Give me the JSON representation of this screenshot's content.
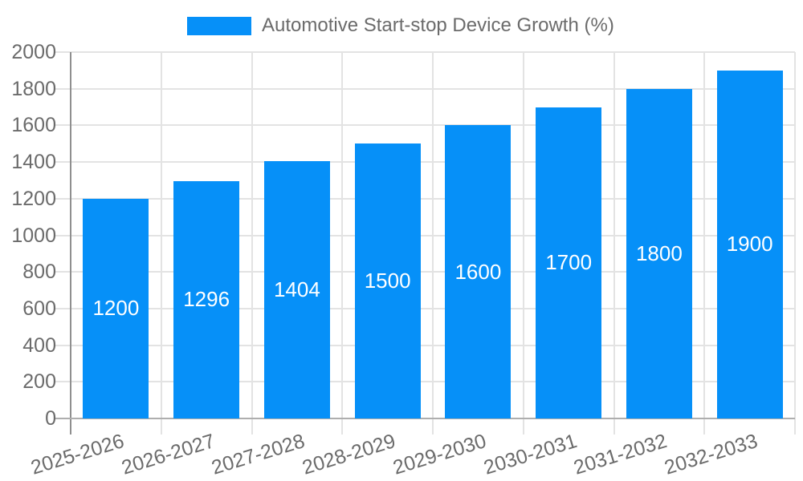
{
  "chart_data": {
    "type": "bar",
    "legend_label": "Automotive Start-stop Device Growth (%)",
    "categories": [
      "2025-2026",
      "2026-2027",
      "2027-2028",
      "2028-2029",
      "2029-2030",
      "2030-2031",
      "2031-2032",
      "2032-2033"
    ],
    "values": [
      1200,
      1296,
      1404,
      1500,
      1600,
      1700,
      1800,
      1900
    ],
    "bar_labels": [
      "1200",
      "1296",
      "1404",
      "1500",
      "1600",
      "1700",
      "1800",
      "1900"
    ],
    "ylim": [
      0,
      2000
    ],
    "ytick_step": 200,
    "ytick_labels": [
      "0",
      "200",
      "400",
      "600",
      "800",
      "1000",
      "1200",
      "1400",
      "1600",
      "1800",
      "2000"
    ],
    "grid": true,
    "legend_position": "top",
    "bar_label_position": "inside-center",
    "colors": {
      "bar": "#0690f8",
      "label_text": "#6b6b6b",
      "bar_value_text": "#ffffff",
      "gridline": "#e3e3e3",
      "y_axis_line": "#8f8f8f",
      "x_axis_line": "#aeaeae",
      "background": "#ffffff"
    }
  }
}
